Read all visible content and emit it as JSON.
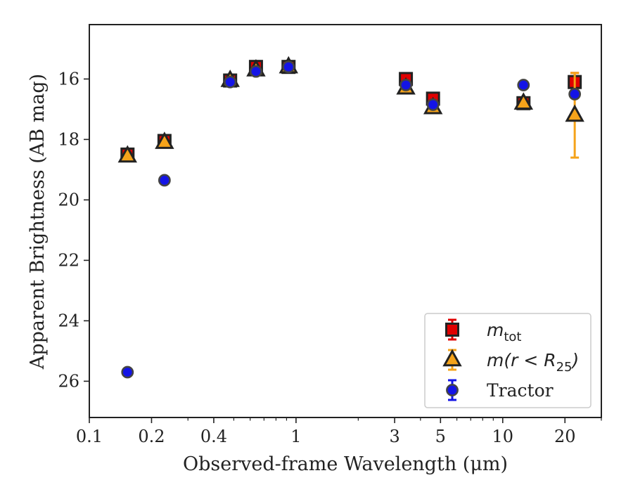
{
  "chart_data": {
    "type": "scatter",
    "xlabel": "Observed-frame Wavelength (μm)",
    "ylabel": "Apparent Brightness (AB mag)",
    "xscale": "log",
    "xlim": [
      0.1,
      30
    ],
    "ylim": [
      27.2,
      14.2
    ],
    "y_inverted": true,
    "xticks": [
      0.1,
      0.2,
      0.4,
      1,
      3,
      5,
      10,
      20
    ],
    "xtick_labels": [
      "0.1",
      "0.2",
      "0.4",
      "1",
      "3",
      "5",
      "10",
      "20"
    ],
    "yticks": [
      16,
      18,
      20,
      22,
      24,
      26
    ],
    "ytick_labels": [
      "16",
      "18",
      "20",
      "22",
      "24",
      "26"
    ],
    "grid": false,
    "legend_position": "bottom-right",
    "series": [
      {
        "name": "m_tot",
        "legend_main": "m",
        "legend_sub": "tot",
        "marker": "square",
        "color": "#e00000",
        "edge": "#222222",
        "points": [
          {
            "x": 0.153,
            "y": 18.5,
            "err": 0.1
          },
          {
            "x": 0.231,
            "y": 18.05,
            "err": 0.1
          },
          {
            "x": 0.48,
            "y": 16.05,
            "err": 0.05
          },
          {
            "x": 0.64,
            "y": 15.6,
            "err": 0.05
          },
          {
            "x": 0.92,
            "y": 15.6,
            "err": 0.05
          },
          {
            "x": 3.4,
            "y": 16.0,
            "err": 0.05
          },
          {
            "x": 4.6,
            "y": 16.65,
            "err": 0.05
          },
          {
            "x": 12.6,
            "y": 16.8,
            "err": 0.05
          },
          {
            "x": 22.3,
            "y": 16.1,
            "err": 0.3
          }
        ]
      },
      {
        "name": "m(r < R25)",
        "legend_main": "m(r < R",
        "legend_sub": "25",
        "legend_tail": ")",
        "marker": "triangle",
        "color": "#f5a31a",
        "edge": "#222222",
        "points": [
          {
            "x": 0.153,
            "y": 18.55,
            "err": 0.05
          },
          {
            "x": 0.231,
            "y": 18.1,
            "err": 0.05
          },
          {
            "x": 0.48,
            "y": 16.05,
            "err": 0.05
          },
          {
            "x": 0.64,
            "y": 15.7,
            "err": 0.05
          },
          {
            "x": 0.92,
            "y": 15.6,
            "err": 0.05
          },
          {
            "x": 3.4,
            "y": 16.3,
            "err": 0.05
          },
          {
            "x": 4.6,
            "y": 16.95,
            "err": 0.05
          },
          {
            "x": 12.6,
            "y": 16.8,
            "err": 0.05
          },
          {
            "x": 22.3,
            "y": 17.2,
            "err": 1.4
          }
        ]
      },
      {
        "name": "Tractor",
        "marker": "circle",
        "color": "#1414e6",
        "edge": "#444444",
        "points": [
          {
            "x": 0.153,
            "y": 25.7,
            "err": 0.05
          },
          {
            "x": 0.231,
            "y": 19.35,
            "err": 0.05
          },
          {
            "x": 0.48,
            "y": 16.1,
            "err": 0.05
          },
          {
            "x": 0.64,
            "y": 15.75,
            "err": 0.05
          },
          {
            "x": 0.92,
            "y": 15.6,
            "err": 0.05
          },
          {
            "x": 3.4,
            "y": 16.2,
            "err": 0.05
          },
          {
            "x": 4.6,
            "y": 16.85,
            "err": 0.05
          },
          {
            "x": 12.6,
            "y": 16.2,
            "err": 0.05
          },
          {
            "x": 22.3,
            "y": 16.5,
            "err": 0.05
          }
        ]
      }
    ]
  }
}
